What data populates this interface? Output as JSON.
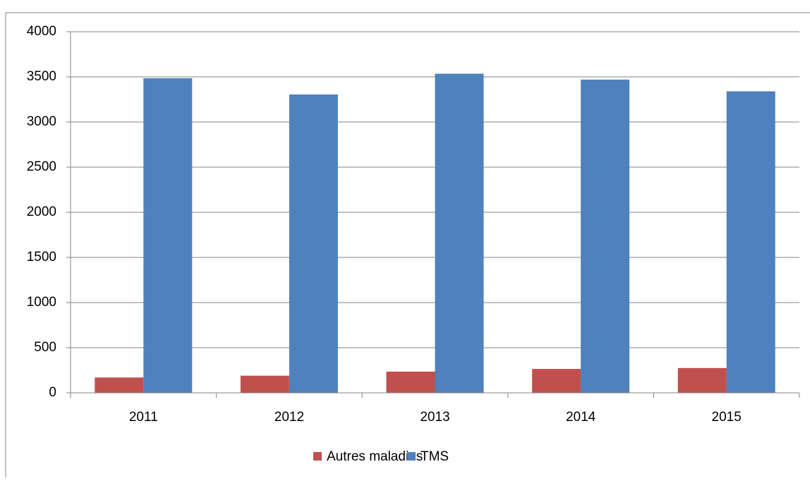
{
  "chart_data": {
    "type": "bar",
    "categories": [
      "2011",
      "2012",
      "2013",
      "2014",
      "2015"
    ],
    "series": [
      {
        "name": "Autres maladies",
        "color": "#c0504d",
        "values": [
          170,
          190,
          235,
          265,
          275
        ]
      },
      {
        "name": "TMS",
        "color": "#4f81bd",
        "values": [
          3485,
          3305,
          3535,
          3470,
          3340
        ]
      }
    ],
    "ylim": [
      0,
      4000
    ],
    "yticks": [
      0,
      500,
      1000,
      1500,
      2000,
      2500,
      3000,
      3500,
      4000
    ],
    "grid": true,
    "legend": "bottom"
  }
}
